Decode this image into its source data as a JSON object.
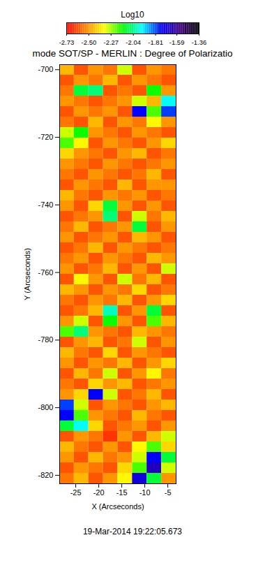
{
  "chart_data": {
    "type": "heatmap",
    "title": "mode SOT/SP - MERLIN : Degree of Polarizatio",
    "x_label": "X (Arcseconds)",
    "y_label": "Y (Arcseconds)",
    "caption": "19-Mar-2014 19:22:05.673",
    "xlim": [
      -28.5,
      -3.2
    ],
    "xticks": [
      -25,
      -20,
      -15,
      -10,
      -5
    ],
    "ylim": [
      -822.5,
      -698.5
    ],
    "yticks": [
      -820,
      -800,
      -780,
      -760,
      -740,
      -720,
      -700
    ],
    "cells": {
      "x_edges": [
        -28.5,
        -25.34,
        -22.18,
        -19.01,
        -15.85,
        -12.69,
        -9.53,
        -6.36,
        -3.2
      ],
      "y_edges": [
        -822.5,
        -819.4,
        -816.3,
        -813.2,
        -810.1,
        -807.0,
        -803.9,
        -800.8,
        -797.7,
        -794.6,
        -791.5,
        -788.4,
        -785.3,
        -782.2,
        -779.1,
        -776.0,
        -772.9,
        -769.8,
        -766.7,
        -763.6,
        -760.5,
        -757.4,
        -754.3,
        -751.2,
        -748.1,
        -745.0,
        -741.9,
        -738.8,
        -735.7,
        -732.6,
        -729.5,
        -726.4,
        -723.3,
        -720.2,
        -717.1,
        -714.0,
        -710.9,
        -707.8,
        -704.7,
        -701.6,
        -698.5
      ],
      "values": [
        [
          -2.55,
          -2.45,
          -2.6,
          -2.5,
          -2.35,
          -1.7,
          -2.1,
          -2.5
        ],
        [
          -2.6,
          -2.5,
          -2.55,
          -2.6,
          -2.4,
          -2.2,
          -1.65,
          -2.3
        ],
        [
          -2.5,
          -2.6,
          -2.45,
          -2.55,
          -2.5,
          -2.3,
          -1.75,
          -2.1
        ],
        [
          -2.45,
          -2.55,
          -2.6,
          -2.5,
          -2.6,
          -2.35,
          -2.2,
          -2.4
        ],
        [
          -2.6,
          -2.5,
          -2.55,
          -2.65,
          -2.5,
          -2.6,
          -2.45,
          -2.3
        ],
        [
          -2.1,
          -1.95,
          -2.4,
          -2.6,
          -2.55,
          -2.5,
          -2.6,
          -2.5
        ],
        [
          -1.75,
          -2.2,
          -2.5,
          -2.55,
          -2.6,
          -2.45,
          -2.55,
          -2.6
        ],
        [
          -1.8,
          -2.3,
          -2.6,
          -2.5,
          -2.55,
          -2.6,
          -2.5,
          -2.45
        ],
        [
          -2.5,
          -2.4,
          -1.75,
          -2.3,
          -2.6,
          -2.55,
          -2.45,
          -2.6
        ],
        [
          -2.55,
          -2.6,
          -2.4,
          -2.5,
          -2.45,
          -2.6,
          -2.55,
          -2.5
        ],
        [
          -2.6,
          -2.45,
          -2.55,
          -2.3,
          -2.6,
          -2.5,
          -2.35,
          -2.55
        ],
        [
          -2.5,
          -2.6,
          -2.5,
          -2.55,
          -2.45,
          -2.6,
          -2.5,
          -2.4
        ],
        [
          -2.45,
          -2.55,
          -2.6,
          -2.4,
          -2.6,
          -2.5,
          -2.55,
          -2.6
        ],
        [
          -2.6,
          -2.5,
          -2.45,
          -2.6,
          -2.55,
          -2.3,
          -2.6,
          -2.5
        ],
        [
          -2.2,
          -2.05,
          -2.5,
          -2.55,
          -2.6,
          -2.45,
          -2.5,
          -2.55
        ],
        [
          -2.5,
          -2.3,
          -2.6,
          -2.15,
          -2.5,
          -2.6,
          -2.2,
          -2.45
        ],
        [
          -2.6,
          -2.55,
          -2.45,
          -2.0,
          -2.6,
          -2.5,
          -2.1,
          -2.6
        ],
        [
          -2.55,
          -2.6,
          -2.5,
          -2.55,
          -2.45,
          -2.6,
          -2.5,
          -2.4
        ],
        [
          -2.45,
          -2.5,
          -2.6,
          -2.5,
          -2.55,
          -2.4,
          -2.6,
          -2.55
        ],
        [
          -2.6,
          -2.35,
          -2.5,
          -2.6,
          -2.3,
          -2.55,
          -2.45,
          -2.6
        ],
        [
          -2.5,
          -2.6,
          -2.55,
          -2.45,
          -2.6,
          -2.5,
          -2.6,
          -2.3
        ],
        [
          -2.55,
          -2.5,
          -2.6,
          -2.5,
          -2.55,
          -2.6,
          -2.45,
          -2.5
        ],
        [
          -2.6,
          -2.55,
          -2.45,
          -2.6,
          -2.5,
          -2.55,
          -2.6,
          -2.55
        ],
        [
          -2.5,
          -2.6,
          -2.55,
          -2.5,
          -2.6,
          -2.45,
          -2.5,
          -2.6
        ],
        [
          -2.55,
          -2.45,
          -2.6,
          -2.55,
          -2.5,
          -2.1,
          -2.6,
          -2.5
        ],
        [
          -2.6,
          -2.55,
          -2.5,
          -2.05,
          -2.6,
          -2.3,
          -2.55,
          -2.45
        ],
        [
          -2.5,
          -2.6,
          -2.4,
          -2.1,
          -2.5,
          -2.6,
          -2.5,
          -2.6
        ],
        [
          -2.45,
          -2.55,
          -2.6,
          -2.5,
          -2.55,
          -2.5,
          -2.6,
          -2.55
        ],
        [
          -2.6,
          -2.5,
          -2.55,
          -2.6,
          -2.45,
          -2.6,
          -2.5,
          -2.5
        ],
        [
          -2.55,
          -2.6,
          -2.5,
          -2.55,
          -2.6,
          -2.55,
          -2.45,
          -2.6
        ],
        [
          -2.5,
          -2.55,
          -2.6,
          -2.5,
          -2.55,
          -2.6,
          -2.55,
          -2.5
        ],
        [
          -2.4,
          -2.5,
          -2.55,
          -2.6,
          -2.5,
          -2.45,
          -2.6,
          -2.55
        ],
        [
          -2.2,
          -2.35,
          -2.6,
          -2.5,
          -2.55,
          -2.6,
          -2.5,
          -2.4
        ],
        [
          -2.3,
          -2.15,
          -2.5,
          -2.55,
          -2.6,
          -2.5,
          -2.55,
          -2.6
        ],
        [
          -2.55,
          -2.6,
          -2.45,
          -2.6,
          -2.5,
          -2.55,
          -2.35,
          -2.5
        ],
        [
          -2.6,
          -2.5,
          -2.55,
          -2.5,
          -2.6,
          -1.75,
          -2.2,
          -1.8
        ],
        [
          -2.5,
          -2.55,
          -2.6,
          -2.55,
          -2.5,
          -2.3,
          -2.45,
          -1.95
        ],
        [
          -2.55,
          -2.1,
          -2.05,
          -2.6,
          -2.55,
          -2.6,
          -2.15,
          -2.5
        ],
        [
          -2.6,
          -2.5,
          -2.55,
          -2.45,
          -2.6,
          -2.5,
          -2.55,
          -2.6
        ],
        [
          -2.45,
          -2.6,
          -2.5,
          -2.55,
          -2.3,
          -2.6,
          -2.5,
          -2.55
        ]
      ]
    },
    "colorbar": {
      "label": "Log10",
      "range": [
        -2.73,
        -1.36
      ],
      "ticks": [
        {
          "value": -2.73,
          "label": "-2.73"
        },
        {
          "value": -2.5,
          "label": "-2.50"
        },
        {
          "value": -2.27,
          "label": "-2.27"
        },
        {
          "value": -2.04,
          "label": "-2.04"
        },
        {
          "value": -1.81,
          "label": "-1.81"
        },
        {
          "value": -1.59,
          "label": "-1.59"
        },
        {
          "value": -1.36,
          "label": "-1.36"
        }
      ],
      "colors": [
        "#ff0000",
        "#ff8000",
        "#ffff00",
        "#00ff00",
        "#00ffff",
        "#0000ff",
        "#400080",
        "#000000"
      ]
    }
  }
}
